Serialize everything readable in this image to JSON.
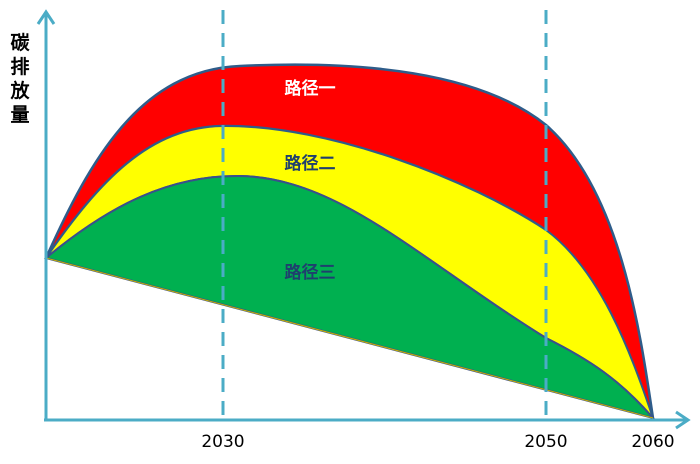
{
  "y_axis_label": "碳排放量",
  "x_ticks": [
    "2030",
    "2050",
    "2060"
  ],
  "paths": [
    {
      "label": "路径一",
      "color": "#ff0000",
      "label_color": "#ffffff"
    },
    {
      "label": "路径二",
      "color": "#ffff00",
      "label_color": "#1f3f6e"
    },
    {
      "label": "路径三",
      "color": "#00b050",
      "label_color": "#1f3f6e"
    }
  ],
  "colors": {
    "axis": "#4bacc6",
    "curve_outline": "#2e5c8a"
  }
}
